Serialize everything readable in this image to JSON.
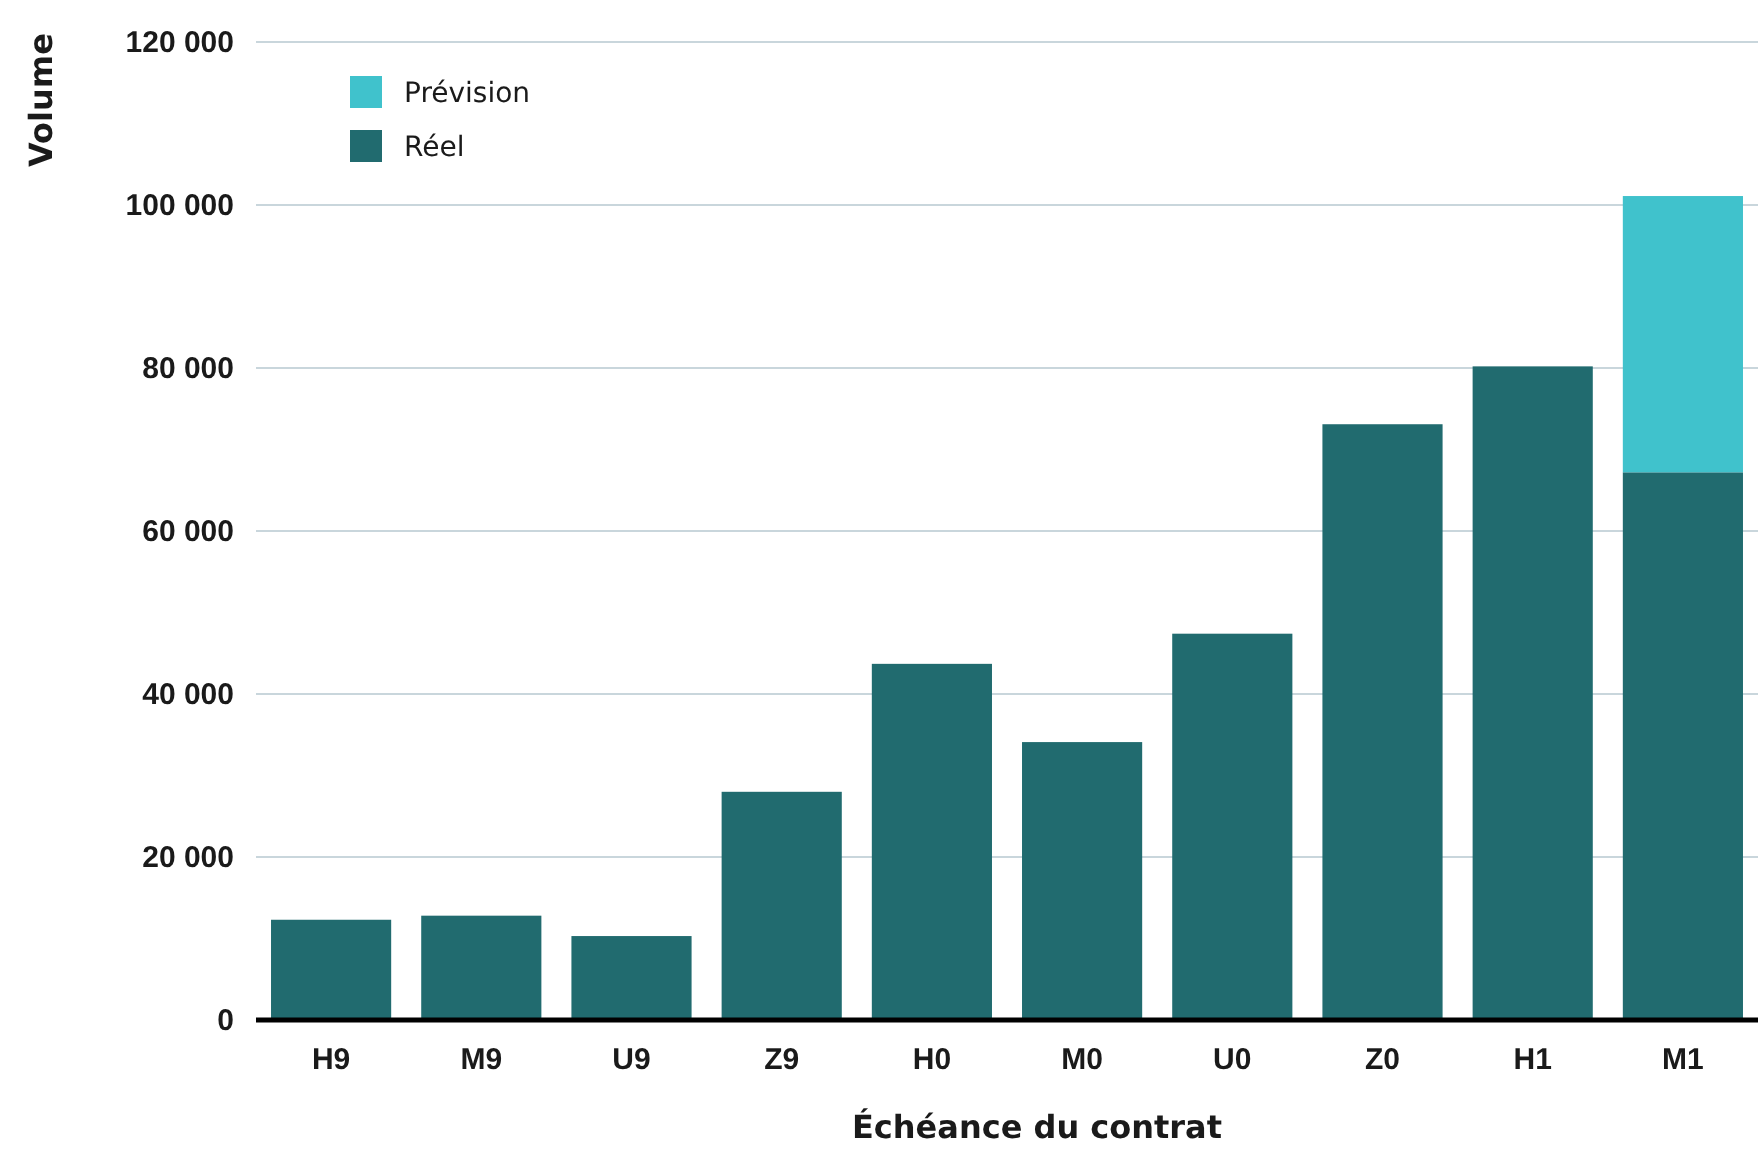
{
  "chart_data": {
    "type": "bar",
    "xlabel": "Échéance du contrat",
    "ylabel": "Volume",
    "categories": [
      "H9",
      "M9",
      "U9",
      "Z9",
      "H0",
      "M0",
      "U0",
      "Z0",
      "H1",
      "M1"
    ],
    "stacked": true,
    "series": [
      {
        "name": "Réel",
        "color": "#216b6f",
        "values": [
          12300,
          12800,
          10300,
          28000,
          43700,
          34100,
          47400,
          73100,
          80200,
          67200
        ]
      },
      {
        "name": "Prévision",
        "color": "#40c2cc",
        "values": [
          null,
          null,
          null,
          null,
          null,
          null,
          null,
          null,
          null,
          33900
        ]
      }
    ],
    "ylim": [
      0,
      120000
    ],
    "yticks": [
      {
        "value": 0,
        "label": "0"
      },
      {
        "value": 20000,
        "label": "20 000"
      },
      {
        "value": 40000,
        "label": "40 000"
      },
      {
        "value": 60000,
        "label": "60 000"
      },
      {
        "value": 80000,
        "label": "80 000"
      },
      {
        "value": 100000,
        "label": "100 000"
      },
      {
        "value": 120000,
        "label": "120 000"
      }
    ],
    "grid": "y",
    "legend": "top left"
  }
}
